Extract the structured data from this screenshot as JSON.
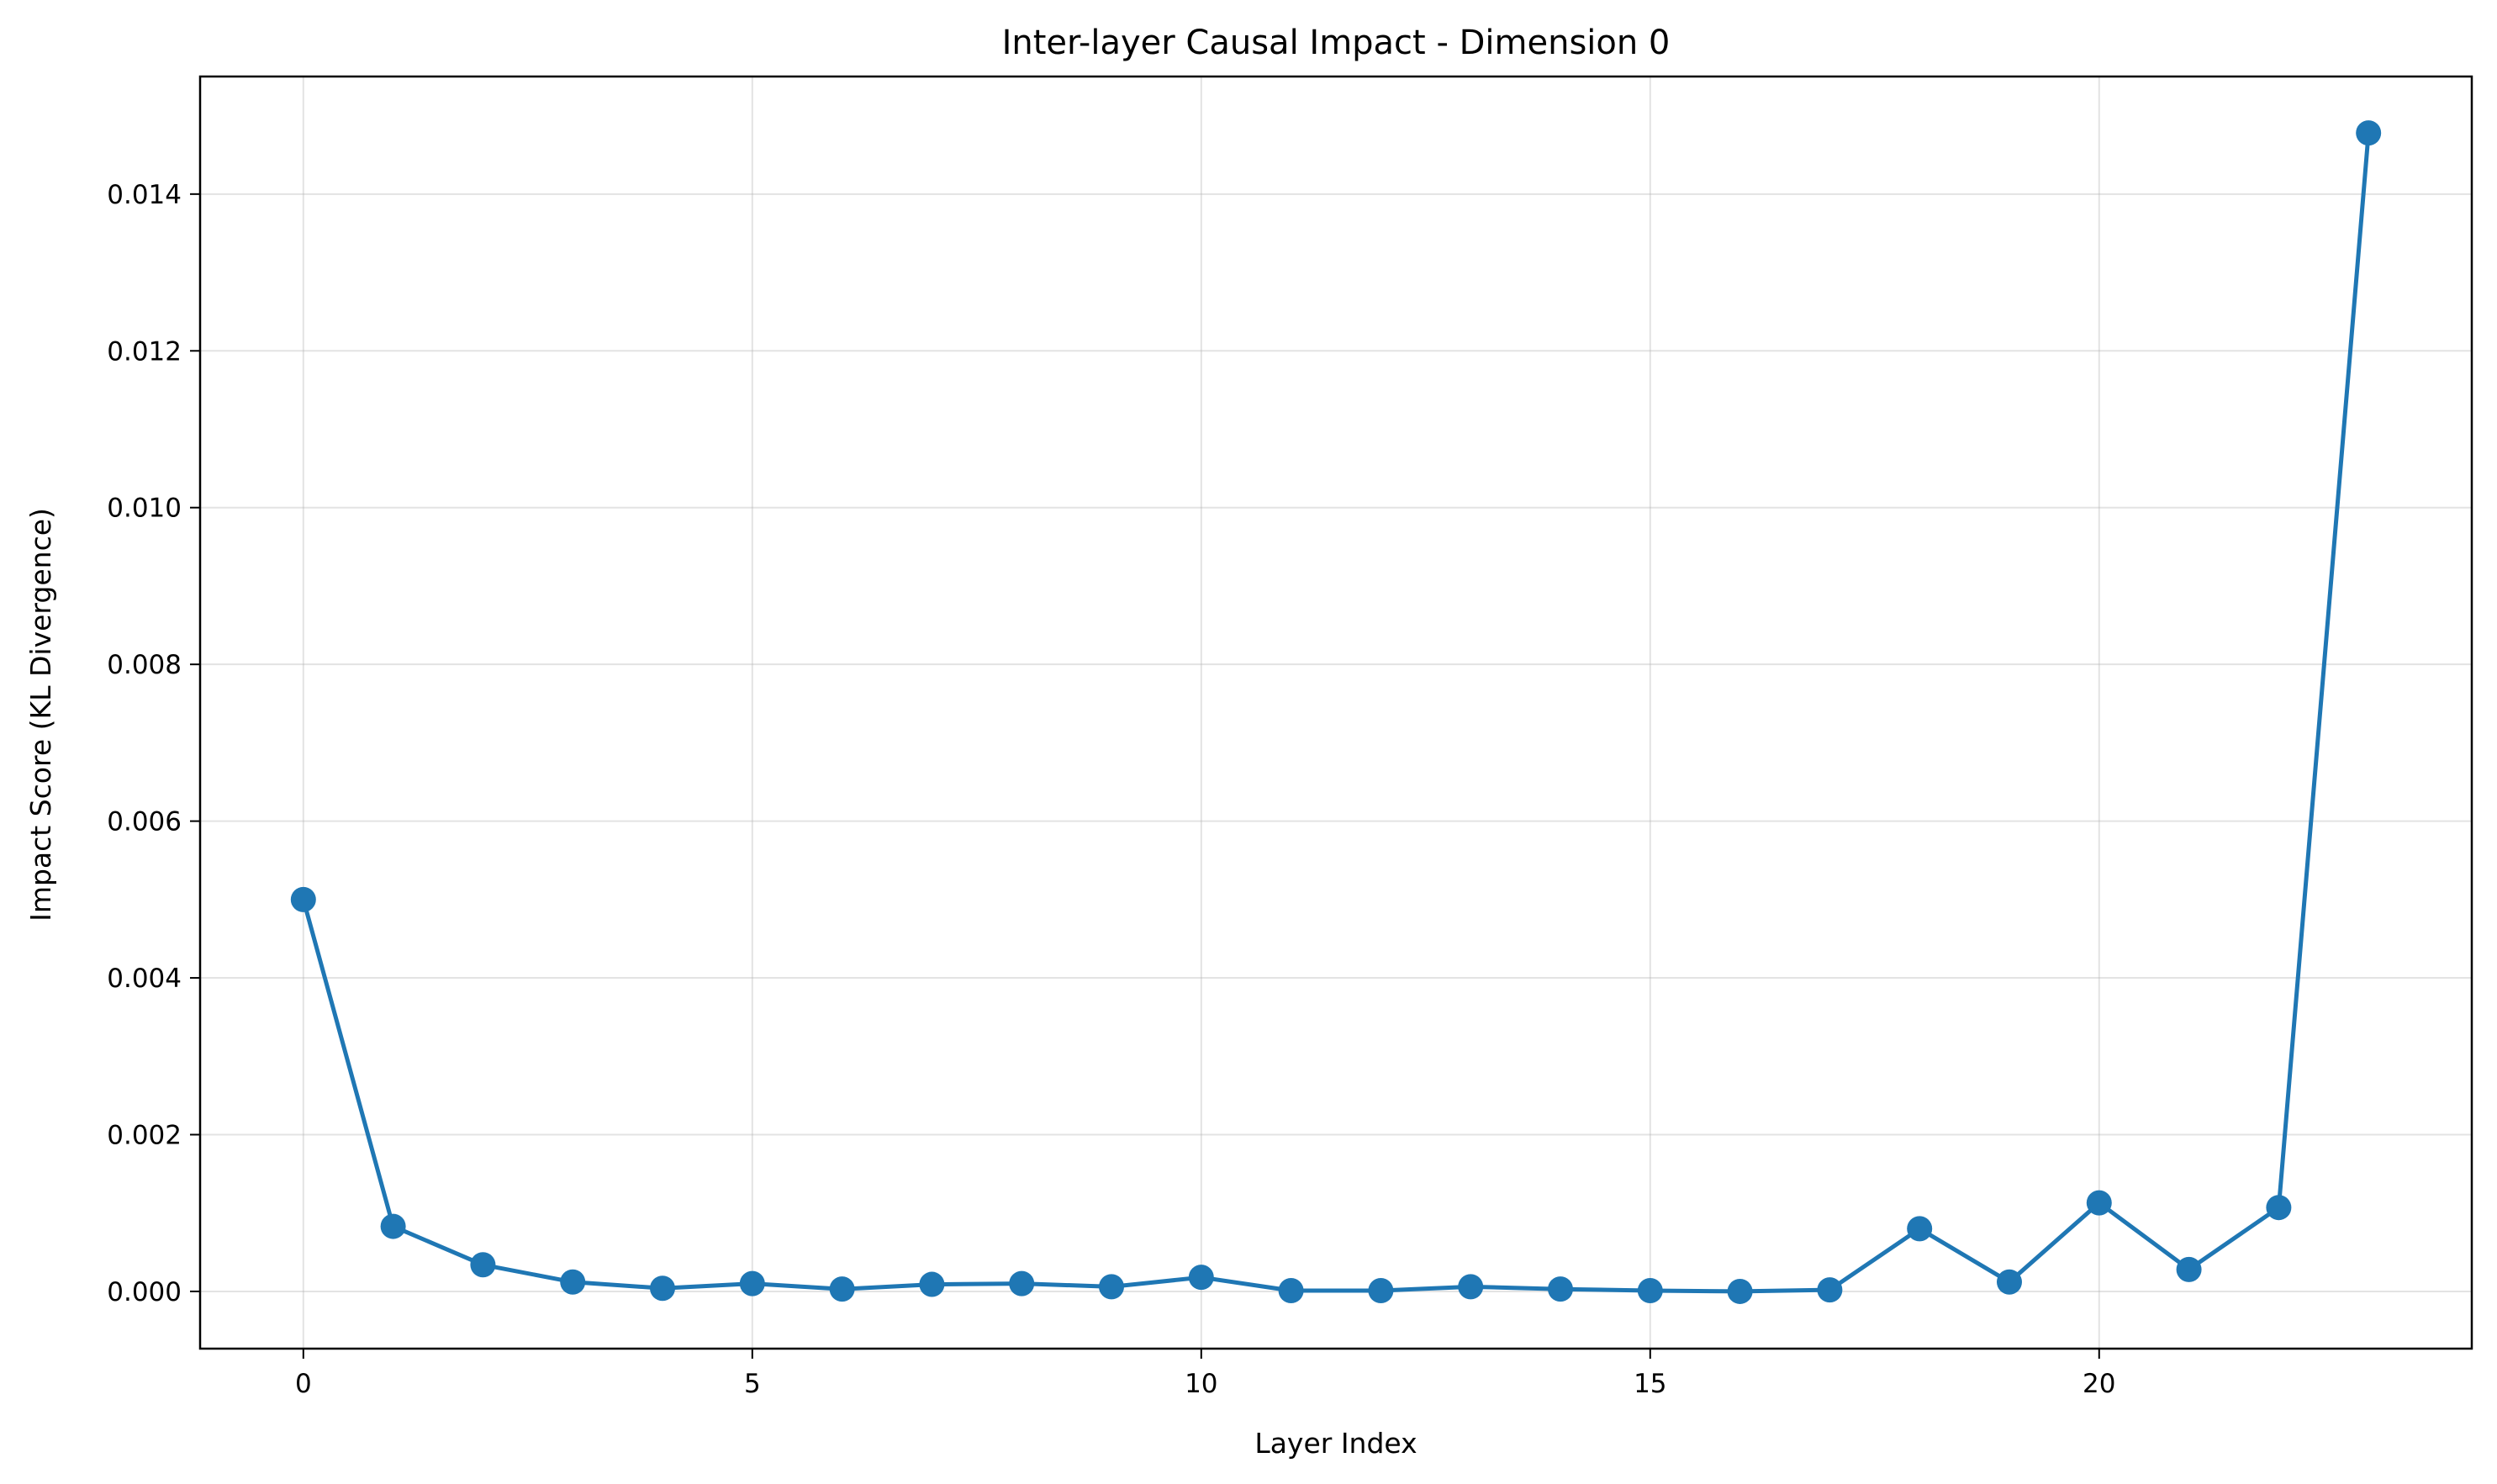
{
  "chart_data": {
    "type": "line",
    "title": "Inter-layer Causal Impact - Dimension 0",
    "xlabel": "Layer Index",
    "ylabel": "Impact Score (KL Divergence)",
    "xlim": [
      -1.15,
      24.15
    ],
    "ylim": [
      -0.00073,
      0.0155
    ],
    "xticks": [
      0,
      5,
      10,
      15,
      20
    ],
    "xtick_labels": [
      "0",
      "5",
      "10",
      "15",
      "20"
    ],
    "yticks": [
      0.0,
      0.002,
      0.004,
      0.006,
      0.008,
      0.01,
      0.012,
      0.014
    ],
    "ytick_labels": [
      "0.000",
      "0.002",
      "0.004",
      "0.006",
      "0.008",
      "0.010",
      "0.012",
      "0.014"
    ],
    "grid": true,
    "marker": "circle",
    "color": "#1f77b4",
    "series": [
      {
        "x": [
          0,
          1,
          2,
          3,
          4,
          5,
          6,
          7,
          8,
          9,
          10,
          11,
          12,
          13,
          14,
          15,
          16,
          17,
          18,
          19,
          20,
          21,
          22,
          23
        ],
        "values": [
          0.005,
          0.00083,
          0.00034,
          0.00012,
          4e-05,
          0.0001,
          3e-05,
          9e-05,
          0.0001,
          6e-05,
          0.00018,
          1e-05,
          1e-05,
          6e-05,
          3e-05,
          1e-05,
          0.0,
          2e-05,
          0.0008,
          0.00012,
          0.00113,
          0.00028,
          0.00107,
          0.01478
        ]
      }
    ]
  }
}
